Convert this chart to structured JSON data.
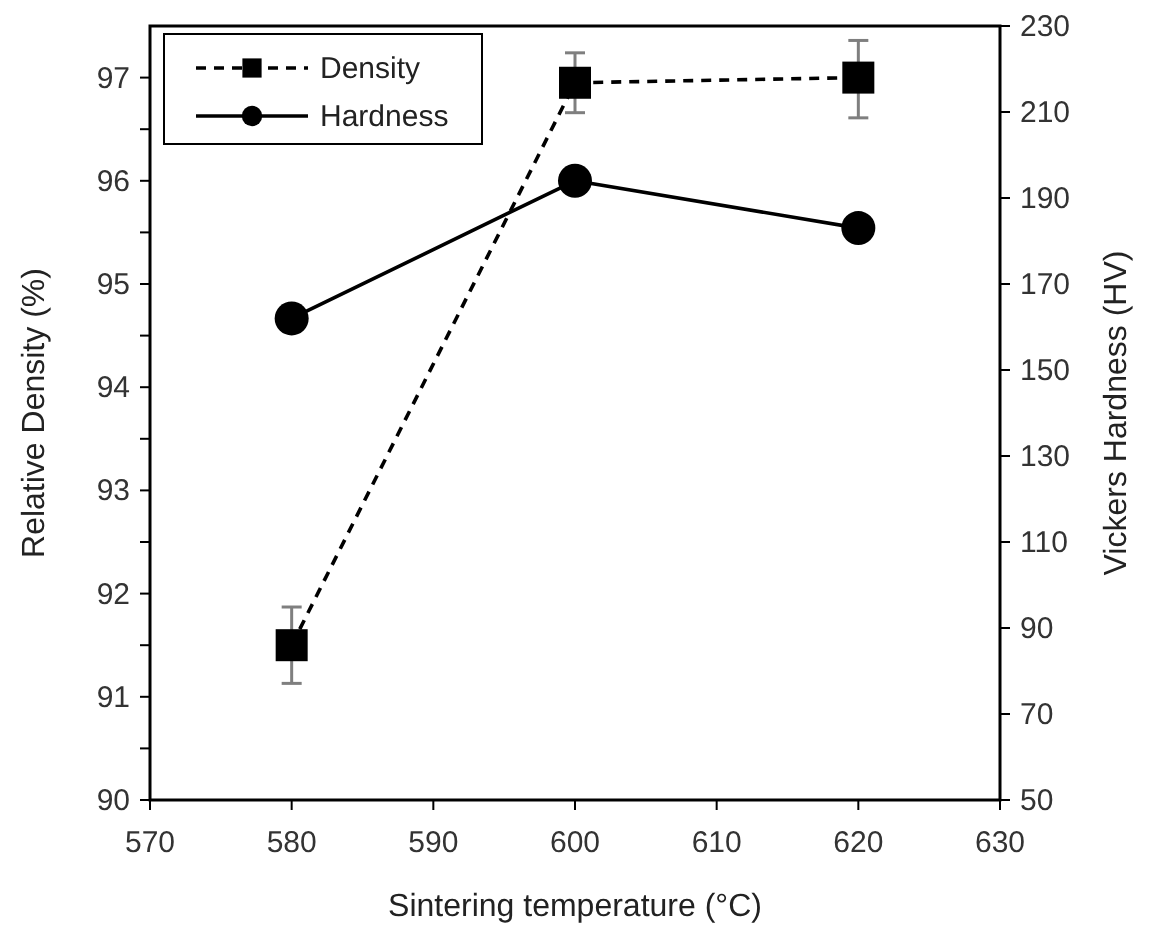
{
  "chart_data": {
    "type": "line",
    "xlabel": "Sintering temperature (°C)",
    "ylabel": "Relative Density (%)",
    "y2label": "Vickers Hardness (HV)",
    "x": [
      580,
      600,
      620
    ],
    "xlim": [
      570,
      630
    ],
    "xticks": [
      570,
      580,
      590,
      600,
      610,
      620,
      630
    ],
    "ylim": [
      90,
      97.5
    ],
    "yticks": [
      90,
      {
        "value": 90.5,
        "label": null
      },
      91,
      {
        "value": 91.5,
        "label": null
      },
      92,
      {
        "value": 92.5,
        "label": null
      },
      93,
      {
        "value": 93.5,
        "label": null
      },
      94,
      {
        "value": 94.5,
        "label": null
      },
      95,
      {
        "value": 95.5,
        "label": null
      },
      96,
      {
        "value": 96.5,
        "label": null
      },
      97
    ],
    "y2lim": [
      50,
      230
    ],
    "y2ticks": [
      50,
      70,
      90,
      110,
      130,
      150,
      170,
      190,
      210,
      230
    ],
    "legend": "top left",
    "grid": false,
    "series": [
      {
        "name": "Density",
        "color": "#000000",
        "values": [
          91.5,
          96.95,
          97.0
        ],
        "errors": [
          0.37,
          0.29,
          [
            96.61,
            97.36
          ]
        ],
        "marker": "square",
        "line_style": "dashed"
      },
      {
        "name": "Hardness",
        "color": "#000000",
        "values": [
          162,
          194,
          183
        ],
        "axis": "y2",
        "marker": "circle",
        "line_style": "solid"
      }
    ]
  }
}
